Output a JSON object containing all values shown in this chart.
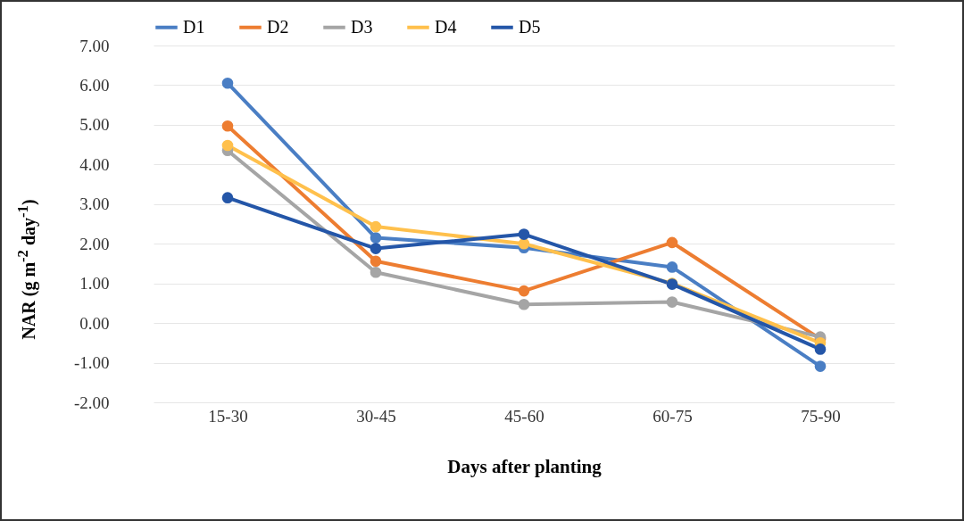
{
  "chart_data": {
    "type": "line",
    "xlabel": "Days after planting",
    "ylabel": "NAR (g m$^{-2}$ day$^{-1}$)",
    "categories": [
      "15-30",
      "30-45",
      "45-60",
      "60-75",
      "75-90"
    ],
    "series": [
      {
        "name": "D1",
        "color": "#4a7ec4",
        "values": [
          6.05,
          2.15,
          1.9,
          1.41,
          -1.09
        ]
      },
      {
        "name": "D2",
        "color": "#ed7d31",
        "values": [
          4.97,
          1.56,
          0.81,
          2.03,
          -0.4
        ]
      },
      {
        "name": "D3",
        "color": "#a5a5a5",
        "values": [
          4.35,
          1.28,
          0.47,
          0.53,
          -0.35
        ]
      },
      {
        "name": "D4",
        "color": "#ffc04c",
        "values": [
          4.48,
          2.43,
          2.0,
          1.0,
          -0.5
        ]
      },
      {
        "name": "D5",
        "color": "#2456a8",
        "values": [
          3.16,
          1.88,
          2.24,
          0.98,
          -0.66
        ]
      }
    ],
    "ylim": [
      -2,
      7
    ],
    "yticks": [
      {
        "value": -2,
        "label": "-2.00"
      },
      {
        "value": -1,
        "label": "-1.00"
      },
      {
        "value": 0,
        "label": "0.00"
      },
      {
        "value": 1,
        "label": "1.00"
      },
      {
        "value": 2,
        "label": "2.00"
      },
      {
        "value": 3,
        "label": "3.00"
      },
      {
        "value": 4,
        "label": "4.00"
      },
      {
        "value": 5,
        "label": "5.00"
      },
      {
        "value": 6,
        "label": "6.00"
      },
      {
        "value": 7,
        "label": "7.00"
      }
    ],
    "grid": "y",
    "legend": "top",
    "marker": "circle",
    "line_style": "solid"
  }
}
